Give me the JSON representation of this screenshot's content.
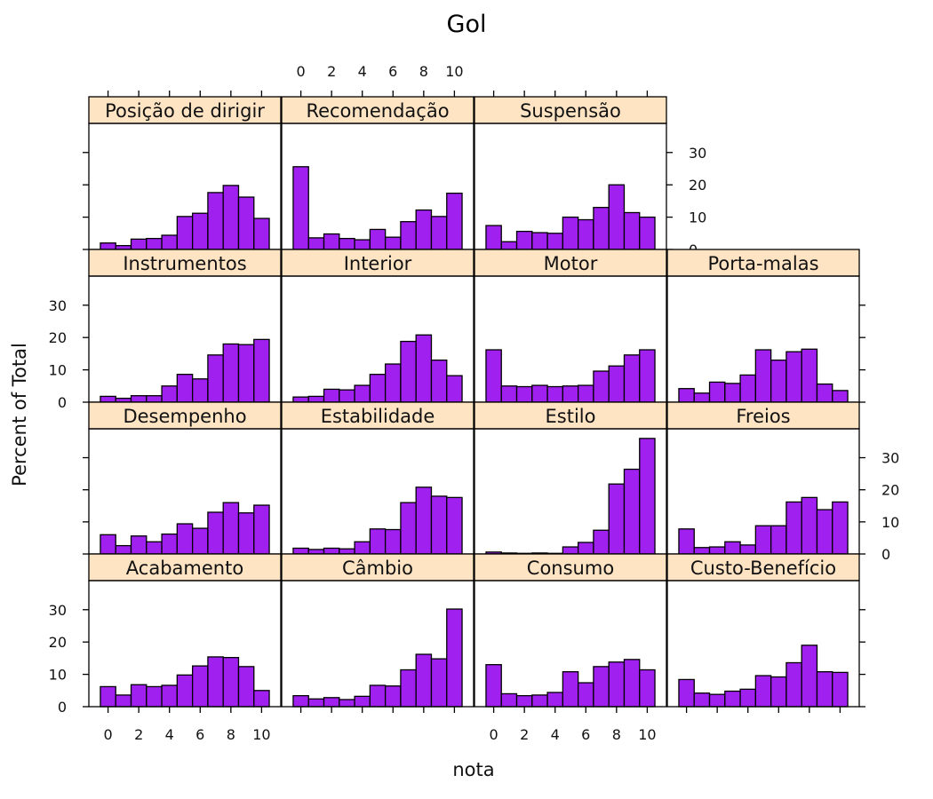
{
  "chart_data": {
    "type": "histogram",
    "title": "Gol",
    "xlabel": "nota",
    "ylabel": "Percent of Total",
    "x_ticks": [
      0,
      2,
      4,
      6,
      8,
      10
    ],
    "y_ticks": [
      0,
      10,
      20,
      30
    ],
    "xlim": [
      -1.25,
      11.25
    ],
    "ylim": [
      0,
      39
    ],
    "bins": [
      0,
      1,
      2,
      3,
      4,
      5,
      6,
      7,
      8,
      9,
      10
    ],
    "colors": {
      "bar": "#a020f0",
      "strip": "#ffe4c4",
      "border": "#000000"
    },
    "panels": [
      {
        "name": "Posição de dirigir",
        "values": [
          2.0,
          1.2,
          3.2,
          3.4,
          4.4,
          10.2,
          11.2,
          17.6,
          19.8,
          16.2,
          9.6
        ]
      },
      {
        "name": "Recomendação",
        "values": [
          25.6,
          3.6,
          4.8,
          3.4,
          3.0,
          6.2,
          3.8,
          8.6,
          12.2,
          10.2,
          17.4
        ]
      },
      {
        "name": "Suspensão",
        "values": [
          7.4,
          2.4,
          5.6,
          5.2,
          5.0,
          10.0,
          9.2,
          13.0,
          20.0,
          11.4,
          10.0
        ]
      },
      {
        "name": "Instrumentos",
        "values": [
          1.8,
          1.2,
          2.0,
          2.0,
          5.0,
          8.6,
          7.2,
          14.6,
          18.0,
          17.8,
          19.4
        ]
      },
      {
        "name": "Interior",
        "values": [
          1.6,
          1.8,
          4.0,
          3.8,
          5.2,
          8.6,
          11.8,
          18.8,
          20.8,
          13.0,
          8.2
        ]
      },
      {
        "name": "Motor",
        "values": [
          16.2,
          5.0,
          4.8,
          5.2,
          4.8,
          5.0,
          5.2,
          9.6,
          11.2,
          14.6,
          16.2
        ]
      },
      {
        "name": "Porta-malas",
        "values": [
          4.2,
          2.8,
          6.2,
          5.8,
          8.4,
          16.2,
          13.0,
          15.6,
          16.4,
          5.6,
          3.6
        ]
      },
      {
        "name": "Desempenho",
        "values": [
          6.0,
          2.6,
          5.6,
          3.8,
          6.2,
          9.4,
          8.0,
          13.0,
          16.0,
          12.8,
          15.2
        ]
      },
      {
        "name": "Estabilidade",
        "values": [
          1.8,
          1.4,
          1.8,
          1.6,
          3.8,
          7.8,
          7.6,
          16.0,
          20.8,
          18.0,
          17.6
        ]
      },
      {
        "name": "Estilo",
        "values": [
          0.6,
          0.3,
          0.2,
          0.3,
          0.2,
          2.2,
          3.6,
          7.4,
          21.8,
          26.4,
          36.0
        ]
      },
      {
        "name": "Freios",
        "values": [
          7.8,
          2.0,
          2.2,
          3.8,
          2.8,
          8.8,
          8.8,
          16.2,
          17.6,
          13.8,
          16.2
        ]
      },
      {
        "name": "Acabamento",
        "values": [
          6.2,
          3.6,
          6.8,
          6.2,
          6.6,
          9.8,
          12.6,
          15.4,
          15.2,
          12.4,
          5.0
        ]
      },
      {
        "name": "Câmbio",
        "values": [
          3.4,
          2.4,
          2.8,
          2.2,
          3.2,
          6.6,
          6.4,
          11.4,
          16.2,
          14.8,
          30.2
        ]
      },
      {
        "name": "Consumo",
        "values": [
          13.0,
          4.0,
          3.4,
          3.6,
          4.4,
          10.8,
          7.4,
          12.4,
          13.8,
          14.6,
          11.4
        ]
      },
      {
        "name": "Custo-Benefício",
        "values": [
          8.4,
          4.2,
          3.8,
          4.8,
          5.4,
          9.6,
          9.2,
          13.6,
          19.0,
          10.8,
          10.6
        ]
      }
    ]
  }
}
